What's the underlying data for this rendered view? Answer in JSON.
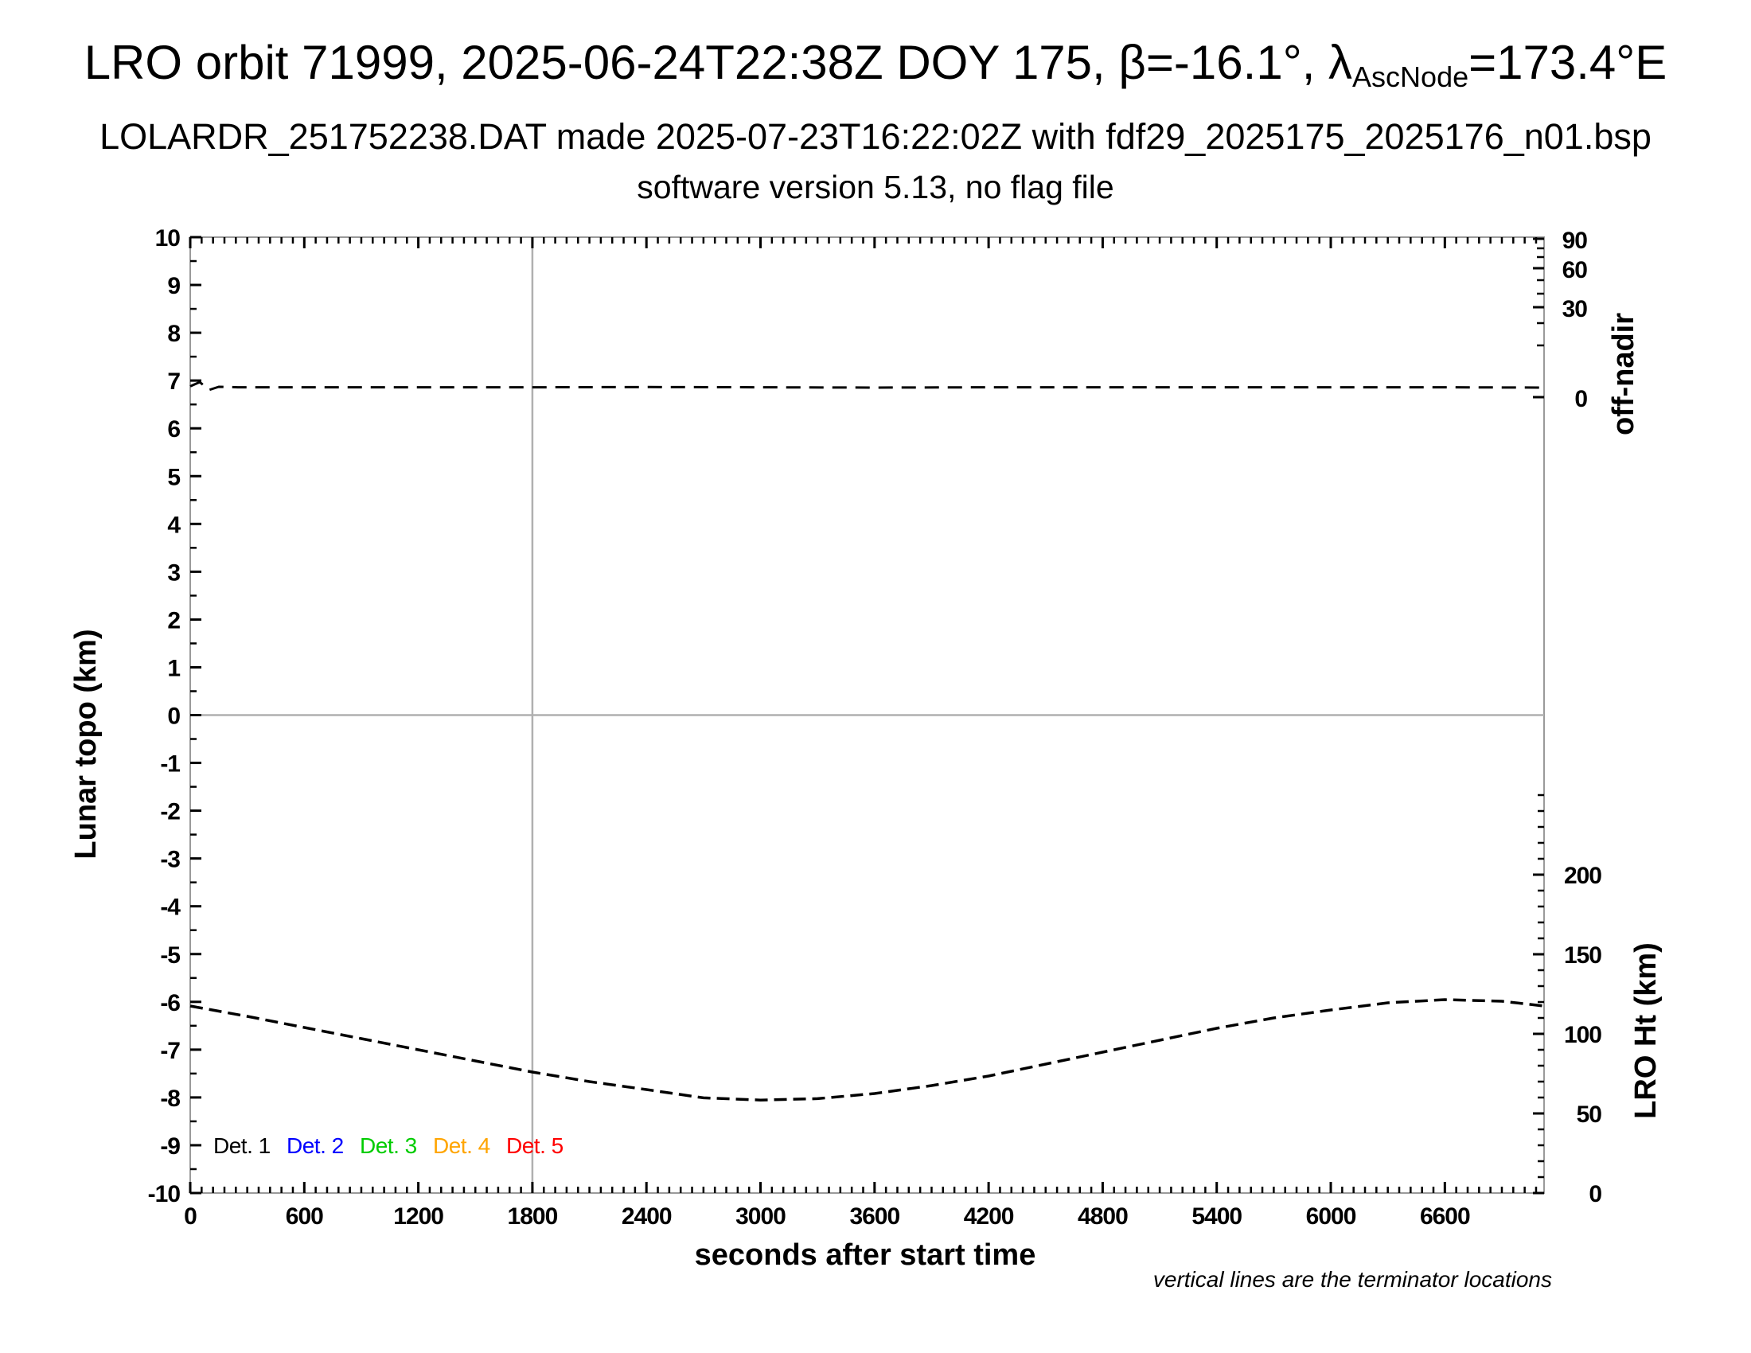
{
  "header": {
    "title_prefix": "LRO orbit 71999, 2025-06-24T22:38Z DOY 175, β=-16.1°, λ",
    "title_subscript": "AscNode",
    "title_suffix": "=173.4°E",
    "subtitle1": "LOLARDR_251752238.DAT made 2025-07-23T16:22:02Z with fdf29_2025175_2025176_n01.bsp",
    "subtitle2": "software version 5.13, no flag file"
  },
  "axes": {
    "x": {
      "label": "seconds after start time",
      "tick_labels": [
        0,
        600,
        1200,
        1800,
        2400,
        3000,
        3600,
        4200,
        4800,
        5400,
        6000,
        6600
      ],
      "range": [
        0,
        7122
      ],
      "minor_step_s": 60
    },
    "y_left": {
      "label": "Lunar topo (km)",
      "tick_labels": [
        10,
        9,
        8,
        7,
        6,
        5,
        4,
        3,
        2,
        1,
        0,
        -1,
        -2,
        -3,
        -4,
        -5,
        -6,
        -7,
        -8,
        -9,
        -10
      ],
      "range": [
        -10,
        10
      ],
      "minor_step": 0.5
    },
    "y_right_offnadir": {
      "label": "off-nadir",
      "tick_labels": [
        90,
        60,
        30,
        0
      ],
      "minor_ticks": [
        90,
        80,
        70,
        60,
        50,
        40,
        30,
        20,
        10,
        0
      ]
    },
    "y_right_ht": {
      "label": "LRO Ht (km)",
      "tick_labels": [
        200,
        150,
        100,
        50,
        0
      ],
      "range": [
        0,
        250
      ],
      "minor_step_km": 10
    }
  },
  "legend": {
    "items": [
      {
        "label": "Det. 1",
        "color": "#000000"
      },
      {
        "label": "Det. 2",
        "color": "#0000ff"
      },
      {
        "label": "Det. 3",
        "color": "#00cc00"
      },
      {
        "label": "Det. 4",
        "color": "#ffa500"
      },
      {
        "label": "Det. 5",
        "color": "#ff0000"
      }
    ]
  },
  "footnote": "vertical lines are the terminator locations",
  "colors": {
    "frame_gray": "#9a9a9a",
    "gridline_gray": "#b0b0b0",
    "curve_black": "#000000",
    "background": "#ffffff"
  },
  "chart_data": {
    "type": "line",
    "title": "LRO orbit 71999, 2025-06-24T22:38Z DOY 175, beta=-16.1deg, lambda_AscNode=173.4degE",
    "xlabel": "seconds after start time",
    "x_range": [
      0,
      7122
    ],
    "left_axis": {
      "label": "Lunar topo (km)",
      "range": [
        -10,
        10
      ]
    },
    "right_axis_top": {
      "label": "off-nadir",
      "tick_labels": [
        90,
        60,
        30,
        0
      ],
      "units": "deg"
    },
    "right_axis_bottom": {
      "label": "LRO Ht (km)",
      "range": [
        0,
        250
      ],
      "tick_labels": [
        200,
        150,
        100,
        50,
        0
      ]
    },
    "grid": "zero-line and terminator line only",
    "legend_position": "bottom-left inside plot",
    "terminator_lines_s": [
      1800
    ],
    "series": [
      {
        "name": "off-nadir angle",
        "axis": "off_nadir",
        "units": "deg",
        "style": "dashed",
        "color": "#000000",
        "x": [
          0,
          50,
          100,
          150,
          250,
          600,
          1200,
          1800,
          2400,
          3000,
          3600,
          4200,
          4800,
          5400,
          6000,
          6600,
          7122
        ],
        "y": [
          2.1,
          2.9,
          1.4,
          2.0,
          1.9,
          1.9,
          1.9,
          1.9,
          1.95,
          1.9,
          1.85,
          1.9,
          1.9,
          1.9,
          1.9,
          1.9,
          1.85
        ]
      },
      {
        "name": "LRO height",
        "axis": "lro_ht",
        "units": "km",
        "style": "dashed",
        "color": "#000000",
        "x": [
          0,
          300,
          600,
          900,
          1200,
          1500,
          1800,
          2100,
          2400,
          2700,
          3000,
          3300,
          3600,
          3900,
          4200,
          4500,
          4800,
          5100,
          5400,
          5700,
          6000,
          6300,
          6600,
          6900,
          7122
        ],
        "y": [
          117.5,
          111,
          104,
          97,
          90,
          83,
          76,
          70,
          65,
          59.8,
          58.4,
          59.3,
          62.5,
          67.5,
          73.5,
          81,
          88.5,
          96,
          103.5,
          110,
          115,
          119.5,
          121.5,
          120.5,
          117.5
        ]
      }
    ],
    "annotations": [
      "vertical lines are the terminator locations"
    ]
  }
}
